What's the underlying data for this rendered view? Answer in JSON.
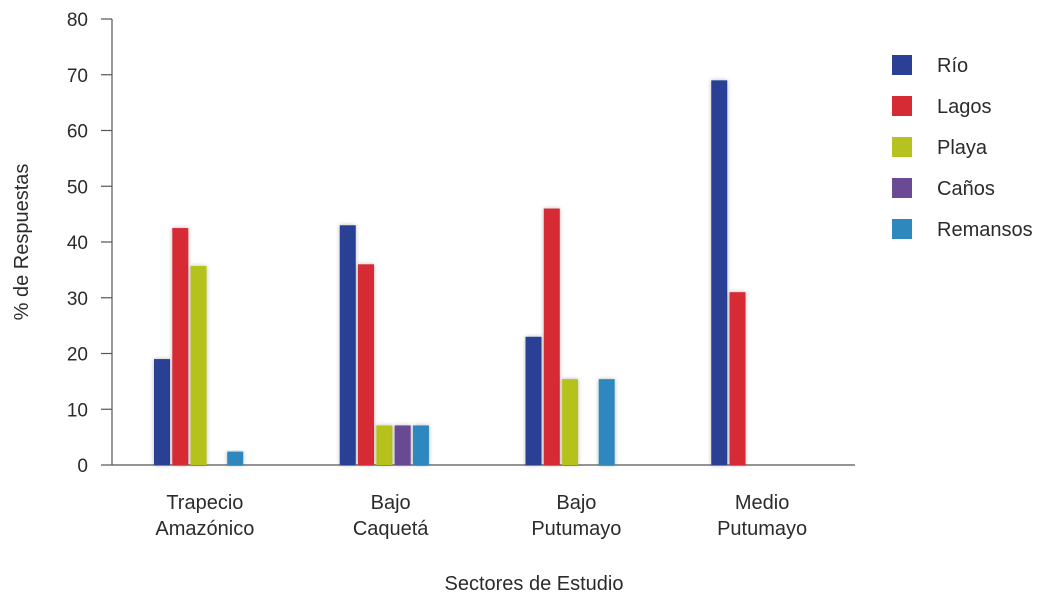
{
  "chart_data": {
    "type": "bar",
    "title": "",
    "xlabel": "Sectores de Estudio",
    "ylabel": "% de Respuestas",
    "ylim": [
      0,
      80
    ],
    "yticks": [
      0,
      10,
      20,
      30,
      40,
      50,
      60,
      70,
      80
    ],
    "categories": [
      [
        "Trapecio",
        "Amazónico"
      ],
      [
        "Bajo",
        "Caquetá"
      ],
      [
        "Bajo",
        "Putumayo"
      ],
      [
        "Medio",
        "Putumayo"
      ]
    ],
    "series": [
      {
        "name": "Río",
        "color": "#2b3f94",
        "values": [
          19,
          43,
          23,
          69
        ]
      },
      {
        "name": "Lagos",
        "color": "#d62b35",
        "values": [
          42.5,
          36,
          46,
          31
        ]
      },
      {
        "name": "Playa",
        "color": "#b5c21f",
        "values": [
          35.7,
          7.1,
          15.4,
          0
        ]
      },
      {
        "name": "Caños",
        "color": "#6a4a94",
        "values": [
          0,
          7.1,
          0,
          0
        ]
      },
      {
        "name": "Remansos",
        "color": "#2f88bd",
        "values": [
          2.4,
          7.1,
          15.4,
          0
        ]
      }
    ],
    "grid": false,
    "legend_position": "right"
  }
}
